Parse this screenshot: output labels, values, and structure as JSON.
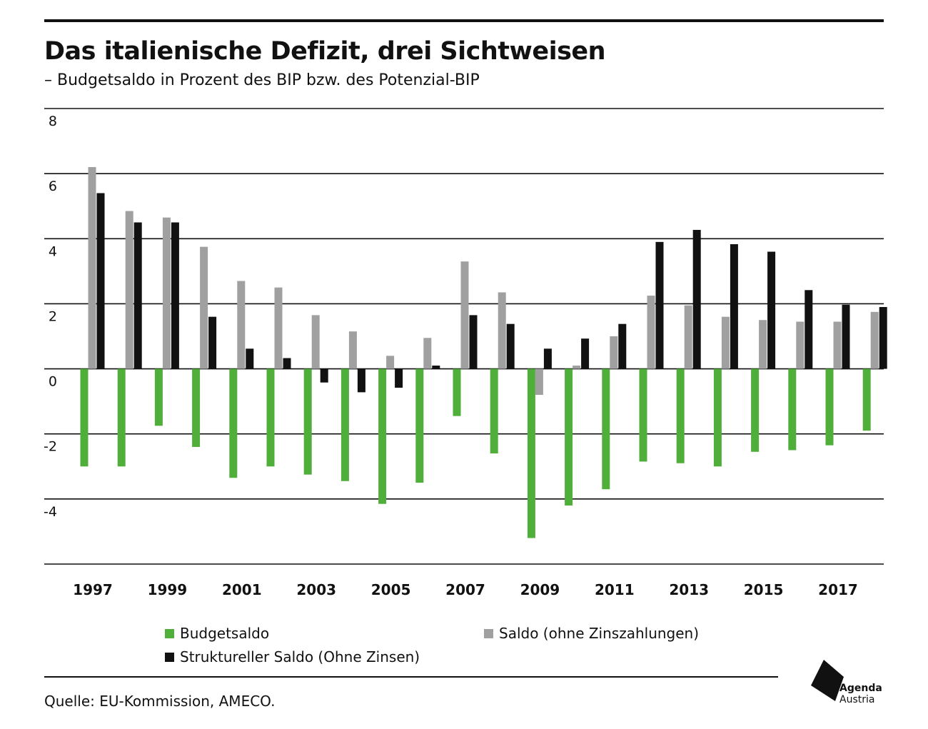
{
  "header": {
    "title": "Das italienische Defizit, drei Sichtweisen",
    "subtitle": "– Budgetsaldo in Prozent des BIP bzw. des Potenzial-BIP"
  },
  "footer": {
    "source": "Quelle: EU-Kommission, AMECO.",
    "logo_line1": "Agenda",
    "logo_line2": "Austria"
  },
  "chart_data": {
    "type": "bar",
    "title": "Das italienische Defizit, drei Sichtweisen",
    "subtitle": "– Budgetsaldo in Prozent des BIP bzw. des Potenzial-BIP",
    "xlabel": "",
    "ylabel": "",
    "ylim": [
      -6,
      8
    ],
    "yticks": [
      8,
      6,
      4,
      2,
      0,
      -2,
      -4
    ],
    "grid": true,
    "legend": "bottom",
    "categories": [
      "1997",
      "1998",
      "1999",
      "2000",
      "2001",
      "2002",
      "2003",
      "2004",
      "2005",
      "2006",
      "2007",
      "2008",
      "2009",
      "2010",
      "2011",
      "2012",
      "2013",
      "2014",
      "2015",
      "2016",
      "2017",
      "2018"
    ],
    "x_tick_labels": [
      "1997",
      "1999",
      "2001",
      "2003",
      "2005",
      "2007",
      "2009",
      "2011",
      "2013",
      "2015",
      "2017"
    ],
    "series": [
      {
        "name": "Budgetsaldo",
        "color": "#4faf3a",
        "values": [
          -3.0,
          -3.0,
          -1.75,
          -2.4,
          -3.35,
          -3.0,
          -3.25,
          -3.45,
          -4.15,
          -3.5,
          -1.45,
          -2.6,
          -5.2,
          -4.2,
          -3.7,
          -2.85,
          -2.9,
          -3.0,
          -2.55,
          -2.5,
          -2.35,
          -1.9
        ]
      },
      {
        "name": "Saldo (ohne Zinszahlungen)",
        "color": "#a0a0a0",
        "values": [
          6.2,
          4.85,
          4.65,
          3.75,
          2.7,
          2.5,
          1.65,
          1.15,
          0.4,
          0.95,
          3.3,
          2.35,
          -0.8,
          0.1,
          1.0,
          2.25,
          1.95,
          1.6,
          1.5,
          1.45,
          1.45,
          1.75
        ]
      },
      {
        "name": "Struktureller Saldo (Ohne Zinsen)",
        "color": "#111111",
        "values": [
          5.4,
          4.5,
          4.5,
          1.6,
          0.62,
          0.33,
          -0.42,
          -0.72,
          -0.58,
          0.1,
          1.65,
          1.38,
          0.62,
          0.93,
          1.38,
          3.9,
          4.27,
          3.83,
          3.6,
          2.42,
          1.97,
          1.9
        ]
      }
    ]
  }
}
